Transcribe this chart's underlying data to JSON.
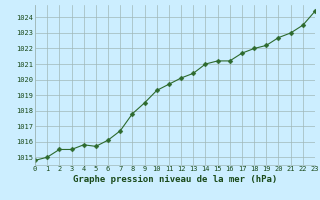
{
  "x": [
    0,
    1,
    2,
    3,
    4,
    5,
    6,
    7,
    8,
    9,
    10,
    11,
    12,
    13,
    14,
    15,
    16,
    17,
    18,
    19,
    20,
    21,
    22,
    23
  ],
  "y": [
    1014.8,
    1015.0,
    1015.5,
    1015.5,
    1015.8,
    1015.7,
    1016.1,
    1016.7,
    1017.8,
    1018.5,
    1019.3,
    1019.7,
    1020.1,
    1020.4,
    1021.0,
    1021.2,
    1021.2,
    1021.7,
    1022.0,
    1022.2,
    1022.7,
    1023.0,
    1023.5,
    1024.4
  ],
  "line_color": "#2d6a2d",
  "marker": "D",
  "marker_size": 2.5,
  "bg_color": "#cceeff",
  "grid_color": "#a0b8b8",
  "xlabel": "Graphe pression niveau de la mer (hPa)",
  "xlabel_color": "#1a4a1a",
  "tick_color": "#1a4a1a",
  "ylim": [
    1014.5,
    1024.8
  ],
  "yticks": [
    1015,
    1016,
    1017,
    1018,
    1019,
    1020,
    1021,
    1022,
    1023,
    1024
  ],
  "xtick_labels": [
    "0",
    "1",
    "2",
    "3",
    "4",
    "5",
    "6",
    "7",
    "8",
    "9",
    "10",
    "11",
    "12",
    "13",
    "14",
    "15",
    "16",
    "17",
    "18",
    "19",
    "20",
    "21",
    "22",
    "23"
  ],
  "xlim": [
    0,
    23
  ]
}
